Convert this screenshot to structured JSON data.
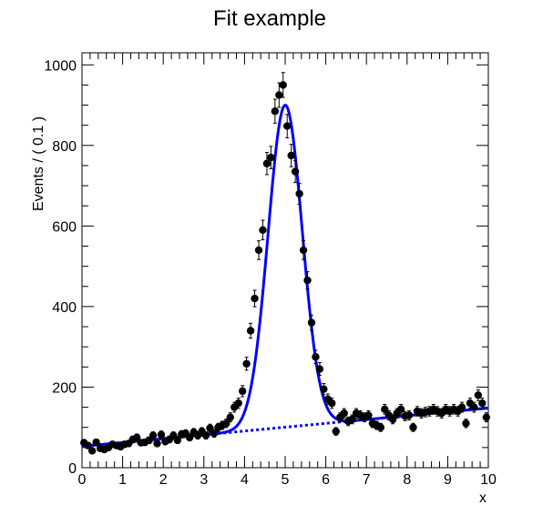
{
  "chart_data": {
    "type": "scatter",
    "title": "Fit example",
    "xlabel": "x",
    "ylabel": "Events / ( 0.1 )",
    "xlim": [
      0,
      10
    ],
    "ylim": [
      0,
      1030
    ],
    "xticks": [
      0,
      1,
      2,
      3,
      4,
      5,
      6,
      7,
      8,
      9,
      10
    ],
    "yticks": [
      0,
      200,
      400,
      600,
      800,
      1000
    ],
    "grid": false,
    "legend": "none",
    "colors": {
      "points": "#000000",
      "fit": "#0000ff"
    },
    "series": [
      {
        "kind": "points-with-error-bars",
        "x": [
          0.05,
          0.15,
          0.25,
          0.35,
          0.45,
          0.55,
          0.65,
          0.75,
          0.85,
          0.95,
          1.05,
          1.15,
          1.25,
          1.35,
          1.45,
          1.55,
          1.65,
          1.75,
          1.85,
          1.95,
          2.05,
          2.15,
          2.25,
          2.35,
          2.45,
          2.55,
          2.65,
          2.75,
          2.85,
          2.95,
          3.05,
          3.15,
          3.25,
          3.35,
          3.45,
          3.55,
          3.65,
          3.75,
          3.85,
          3.95,
          4.05,
          4.15,
          4.25,
          4.35,
          4.45,
          4.55,
          4.65,
          4.75,
          4.85,
          4.95,
          5.05,
          5.15,
          5.25,
          5.35,
          5.45,
          5.55,
          5.65,
          5.75,
          5.85,
          5.95,
          6.05,
          6.15,
          6.25,
          6.35,
          6.45,
          6.55,
          6.65,
          6.75,
          6.85,
          6.95,
          7.05,
          7.15,
          7.25,
          7.35,
          7.45,
          7.55,
          7.65,
          7.75,
          7.85,
          7.95,
          8.05,
          8.15,
          8.25,
          8.35,
          8.45,
          8.55,
          8.65,
          8.75,
          8.85,
          8.95,
          9.05,
          9.15,
          9.25,
          9.35,
          9.45,
          9.55,
          9.65,
          9.75,
          9.85,
          9.95
        ],
        "y": [
          62,
          55,
          42,
          63,
          48,
          45,
          50,
          58,
          55,
          52,
          58,
          60,
          70,
          75,
          62,
          63,
          68,
          80,
          60,
          82,
          65,
          70,
          80,
          68,
          83,
          85,
          75,
          88,
          80,
          90,
          80,
          98,
          85,
          100,
          105,
          110,
          125,
          150,
          160,
          190,
          258,
          340,
          420,
          540,
          590,
          755,
          770,
          885,
          925,
          950,
          848,
          775,
          735,
          680,
          540,
          465,
          360,
          275,
          245,
          195,
          170,
          160,
          90,
          125,
          135,
          115,
          120,
          135,
          130,
          125,
          130,
          110,
          105,
          100,
          145,
          130,
          120,
          135,
          145,
          128,
          130,
          100,
          140,
          135,
          138,
          140,
          145,
          140,
          135,
          145,
          140,
          145,
          140,
          150,
          110,
          160,
          150,
          180,
          160,
          125
        ]
      },
      {
        "kind": "fit-curve",
        "model": "gaussian-plus-linear",
        "peak_x": 5.0,
        "peak_y": 900,
        "baseline": [
          [
            0,
            53
          ],
          [
            10,
            148
          ]
        ]
      },
      {
        "kind": "background-dashed",
        "model": "linear",
        "line": [
          [
            0,
            53
          ],
          [
            10,
            148
          ]
        ]
      }
    ]
  }
}
